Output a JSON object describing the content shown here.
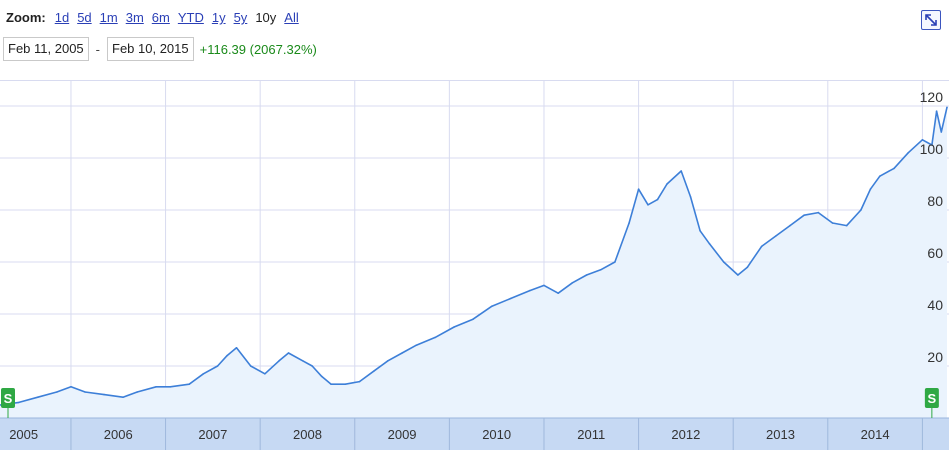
{
  "zoom": {
    "title": "Zoom:",
    "options": [
      "1d",
      "5d",
      "1m",
      "3m",
      "6m",
      "YTD",
      "1y",
      "5y",
      "10y",
      "All"
    ],
    "active": "10y"
  },
  "range": {
    "start": "Feb 11, 2005",
    "separator": "-",
    "end": "Feb 10, 2015",
    "change": "+116.39 (2067.32%)",
    "change_color": "#1a8a1a"
  },
  "expand_icon": "expand-diagonal-arrow-icon",
  "colors": {
    "line": "#3d7fd8",
    "fill": "#eaf3fd",
    "grid": "#d8dbf0",
    "axis_band": "#c6d9f3",
    "marker": "#2fa844"
  },
  "chart_data": {
    "type": "area",
    "title": "",
    "xlabel": "",
    "ylabel": "",
    "xlim": [
      2005.1,
      2015.11
    ],
    "ylim": [
      0,
      130
    ],
    "y_ticks": [
      20,
      40,
      60,
      80,
      100,
      120
    ],
    "x_ticks": [
      "2005",
      "2006",
      "2007",
      "2008",
      "2009",
      "2010",
      "2011",
      "2012",
      "2013",
      "2014"
    ],
    "grid": true,
    "x": [
      2005.1,
      2005.3,
      2005.5,
      2005.7,
      2005.85,
      2006.0,
      2006.2,
      2006.4,
      2006.55,
      2006.75,
      2006.9,
      2007.1,
      2007.25,
      2007.4,
      2007.5,
      2007.6,
      2007.75,
      2007.9,
      2008.05,
      2008.15,
      2008.3,
      2008.4,
      2008.5,
      2008.6,
      2008.75,
      2008.9,
      2009.05,
      2009.2,
      2009.35,
      2009.5,
      2009.7,
      2009.9,
      2010.1,
      2010.3,
      2010.5,
      2010.7,
      2010.85,
      2011.0,
      2011.15,
      2011.3,
      2011.45,
      2011.6,
      2011.75,
      2011.85,
      2011.95,
      2012.05,
      2012.15,
      2012.3,
      2012.4,
      2012.5,
      2012.6,
      2012.75,
      2012.9,
      2013.0,
      2013.15,
      2013.3,
      2013.45,
      2013.6,
      2013.75,
      2013.9,
      2014.05,
      2014.2,
      2014.3,
      2014.4,
      2014.55,
      2014.7,
      2014.85,
      2014.95,
      2015.0,
      2015.05,
      2015.11
    ],
    "y": [
      5,
      6,
      8,
      10,
      12,
      10,
      9,
      8,
      10,
      12,
      12,
      13,
      17,
      20,
      24,
      27,
      20,
      17,
      22,
      25,
      22,
      20,
      16,
      13,
      13,
      14,
      18,
      22,
      25,
      28,
      31,
      35,
      38,
      43,
      46,
      49,
      51,
      48,
      52,
      55,
      57,
      60,
      75,
      88,
      82,
      84,
      90,
      95,
      85,
      72,
      67,
      60,
      55,
      58,
      66,
      70,
      74,
      78,
      79,
      75,
      74,
      80,
      88,
      93,
      96,
      102,
      107,
      105,
      118,
      110,
      119.5
    ],
    "markers": [
      {
        "x": 2005.08,
        "label": "S"
      },
      {
        "x": 2014.95,
        "label": "S"
      }
    ]
  }
}
